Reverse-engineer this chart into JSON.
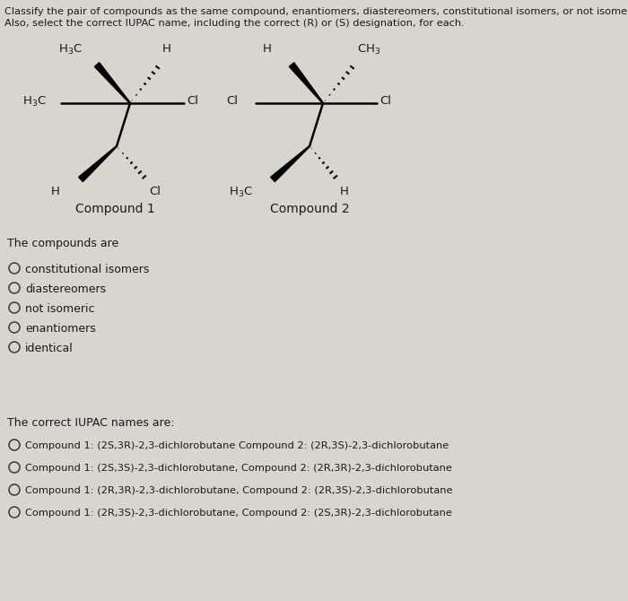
{
  "background_color": "#d8d4ce",
  "title_line1": "Classify the pair of compounds as the same compound, enantiomers, diastereomers, constitutional isomers, or not isomeric.",
  "title_line2": "Also, select the correct IUPAC name, including the correct (R) or (S) designation, for each.",
  "section1_label": "The compounds are",
  "radio_options_1": [
    "constitutional isomers",
    "diastereomers",
    "not isomeric",
    "enantiomers",
    "identical"
  ],
  "section2_label": "The correct IUPAC names are:",
  "radio_options_2": [
    "Compound 1: (2S,3R)-2,3-dichlorobutane Compound 2: (2R,3S)-2,3-dichlorobutane",
    "Compound 1: (2S,3S)-2,3-dichlorobutane, Compound 2: (2R,3R)-2,3-dichlorobutane",
    "Compound 1: (2R,3R)-2,3-dichlorobutane, Compound 2: (2R,3S)-2,3-dichlorobutane",
    "Compound 1: (2R,3S)-2,3-dichlorobutane, Compound 2: (2S,3R)-2,3-dichlorobutane"
  ],
  "compound1_label": "Compound 1",
  "compound2_label": "Compound 2",
  "text_color": "#1a1a1a",
  "font_size_title": 8.2,
  "font_size_body": 9.0,
  "font_size_chem": 9.5,
  "font_size_label": 10.0,
  "font_size_iupac": 8.2
}
